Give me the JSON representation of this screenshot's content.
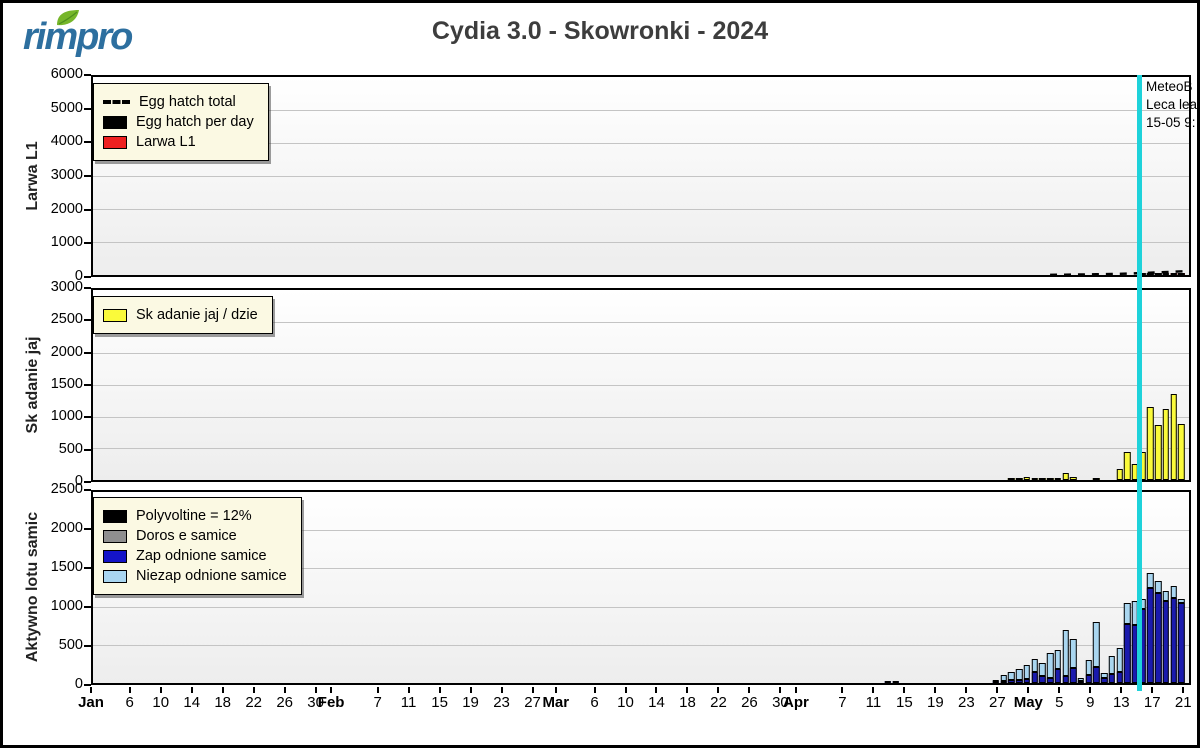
{
  "header": {
    "logo_text": "rimpro",
    "logo_leaf_color": "#76b62a",
    "logo_text_color": "#2d6f9f",
    "title": "Cydia 3.0 - Skowronki - 2024"
  },
  "annotation": {
    "lines": [
      "MeteoB",
      "Leca lea",
      "15-05 9:"
    ]
  },
  "marker": {
    "day": 135.4,
    "date": "15-05",
    "color": "#1ed2da"
  },
  "xaxis": {
    "domain_days": [
      0,
      142
    ],
    "ticks": [
      {
        "d": 0,
        "label": "Jan",
        "month": true
      },
      {
        "d": 5,
        "label": "6"
      },
      {
        "d": 9,
        "label": "10"
      },
      {
        "d": 13,
        "label": "14"
      },
      {
        "d": 17,
        "label": "18"
      },
      {
        "d": 21,
        "label": "22"
      },
      {
        "d": 25,
        "label": "26"
      },
      {
        "d": 29,
        "label": "30"
      },
      {
        "d": 31,
        "label": "Feb",
        "month": true
      },
      {
        "d": 37,
        "label": "7"
      },
      {
        "d": 41,
        "label": "11"
      },
      {
        "d": 45,
        "label": "15"
      },
      {
        "d": 49,
        "label": "19"
      },
      {
        "d": 53,
        "label": "23"
      },
      {
        "d": 57,
        "label": "27"
      },
      {
        "d": 60,
        "label": "Mar",
        "month": true
      },
      {
        "d": 65,
        "label": "6"
      },
      {
        "d": 69,
        "label": "10"
      },
      {
        "d": 73,
        "label": "14"
      },
      {
        "d": 77,
        "label": "18"
      },
      {
        "d": 81,
        "label": "22"
      },
      {
        "d": 85,
        "label": "26"
      },
      {
        "d": 89,
        "label": "30"
      },
      {
        "d": 91,
        "label": "Apr",
        "month": true
      },
      {
        "d": 97,
        "label": "7"
      },
      {
        "d": 101,
        "label": "11"
      },
      {
        "d": 105,
        "label": "15"
      },
      {
        "d": 109,
        "label": "19"
      },
      {
        "d": 113,
        "label": "23"
      },
      {
        "d": 117,
        "label": "27"
      },
      {
        "d": 121,
        "label": "May",
        "month": true
      },
      {
        "d": 125,
        "label": "5"
      },
      {
        "d": 129,
        "label": "9"
      },
      {
        "d": 133,
        "label": "13"
      },
      {
        "d": 137,
        "label": "17"
      },
      {
        "d": 141,
        "label": "21"
      }
    ]
  },
  "chart_data": [
    {
      "type": "bar",
      "ylabel": "Larwa L1",
      "ylim": [
        0,
        6000
      ],
      "ytick_step": 1000,
      "legend": [
        {
          "label": "Egg hatch total",
          "marker": "dash"
        },
        {
          "label": "Egg hatch per day",
          "color": "#000000"
        },
        {
          "label": "Larwa L1",
          "color": "#ee2020"
        }
      ],
      "series": [
        {
          "name": "Egg hatch per day",
          "type": "bar",
          "color": "#000000",
          "points": [
            [
              136,
              12
            ],
            [
              137,
              16
            ],
            [
              138,
              22
            ],
            [
              139,
              28
            ],
            [
              140,
              34
            ],
            [
              141,
              42
            ]
          ]
        },
        {
          "name": "Larwa L1",
          "type": "bar",
          "color": "#ee2020",
          "points": [
            [
              140,
              14
            ],
            [
              141,
              24
            ]
          ]
        },
        {
          "name": "Egg hatch total",
          "type": "line",
          "style": "dashed",
          "color": "#000000",
          "points": [
            [
              124,
              5
            ],
            [
              126,
              10
            ],
            [
              128,
              15
            ],
            [
              130,
              22
            ],
            [
              132,
              30
            ],
            [
              134,
              42
            ],
            [
              136,
              58
            ],
            [
              138,
              80
            ],
            [
              140,
              100
            ],
            [
              142,
              120
            ]
          ]
        }
      ]
    },
    {
      "type": "bar",
      "ylabel": "Sk adanie jaj",
      "ylim": [
        0,
        3000
      ],
      "ytick_step": 500,
      "legend": [
        {
          "label": "Sk adanie jaj / dzie",
          "color": "#fafa3a"
        }
      ],
      "series": [
        {
          "name": "Sk adanie jaj / dzie",
          "type": "bar",
          "color": "#fafa3a",
          "points": [
            [
              119,
              20
            ],
            [
              120,
              25
            ],
            [
              121,
              40
            ],
            [
              122,
              25
            ],
            [
              123,
              20
            ],
            [
              124,
              30
            ],
            [
              125,
              35
            ],
            [
              126,
              110
            ],
            [
              127,
              45
            ],
            [
              130,
              35
            ],
            [
              133,
              170
            ],
            [
              134,
              440
            ],
            [
              135,
              260
            ],
            [
              136,
              450
            ],
            [
              137,
              1150
            ],
            [
              138,
              870
            ],
            [
              139,
              1120
            ],
            [
              140,
              1360
            ],
            [
              141,
              880
            ]
          ]
        }
      ]
    },
    {
      "type": "stacked-bar",
      "ylabel": "Aktywno  lotu samic",
      "ylim": [
        0,
        2500
      ],
      "ytick_step": 500,
      "legend": [
        {
          "label": "Polyvoltine = 12%",
          "color": "#000000"
        },
        {
          "label": "Doros e samice",
          "color": "#8f8f8f"
        },
        {
          "label": "Zap odnione samice",
          "color": "#1414c8"
        },
        {
          "label": "Niezap odnione samice",
          "color": "#a9d6f0"
        }
      ],
      "colors": {
        "fertilized": "#1a1aae",
        "unfertilized": "#a9d6f0"
      },
      "bars_format": [
        "day",
        "total",
        "fertilized"
      ],
      "bars": [
        [
          103,
          20,
          20
        ],
        [
          104,
          15,
          15
        ],
        [
          117,
          30,
          10
        ],
        [
          118,
          100,
          25
        ],
        [
          119,
          140,
          35
        ],
        [
          120,
          190,
          45
        ],
        [
          121,
          240,
          55
        ],
        [
          122,
          320,
          150
        ],
        [
          123,
          260,
          90
        ],
        [
          124,
          390,
          70
        ],
        [
          125,
          430,
          180
        ],
        [
          126,
          690,
          95
        ],
        [
          127,
          580,
          200
        ],
        [
          128,
          70,
          30
        ],
        [
          129,
          300,
          110
        ],
        [
          130,
          800,
          210
        ],
        [
          131,
          130,
          60
        ],
        [
          132,
          350,
          120
        ],
        [
          133,
          460,
          150
        ],
        [
          134,
          1050,
          775
        ],
        [
          135,
          1080,
          760
        ],
        [
          136,
          1100,
          965
        ],
        [
          137,
          1440,
          1245
        ],
        [
          138,
          1330,
          1180
        ],
        [
          139,
          1200,
          1075
        ],
        [
          140,
          1270,
          1115
        ],
        [
          141,
          1100,
          1050
        ]
      ]
    }
  ]
}
